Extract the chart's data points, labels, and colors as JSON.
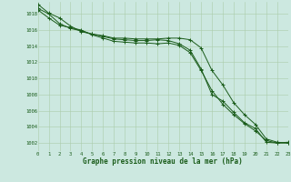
{
  "title": "Graphe pression niveau de la mer (hPa)",
  "background_color": "#cce8e0",
  "grid_color": "#aaccaa",
  "line_color": "#1a5c1a",
  "x_ticks": [
    0,
    1,
    2,
    3,
    4,
    5,
    6,
    7,
    8,
    9,
    10,
    11,
    12,
    13,
    14,
    15,
    16,
    17,
    18,
    19,
    20,
    21,
    22,
    23
  ],
  "y_ticks": [
    1002,
    1004,
    1006,
    1008,
    1010,
    1012,
    1014,
    1016,
    1018
  ],
  "ylim": [
    1001.0,
    1019.5
  ],
  "xlim": [
    0,
    23
  ],
  "series": [
    [
      1019.2,
      1018.1,
      1017.5,
      1016.5,
      1015.8,
      1015.5,
      1015.2,
      1014.9,
      1014.8,
      1014.7,
      1014.7,
      1014.8,
      1014.7,
      1014.3,
      1013.5,
      1011.2,
      1008.0,
      1007.2,
      1005.8,
      1004.5,
      1003.8,
      1002.1,
      1002.0,
      1002.1
    ],
    [
      1018.7,
      1018.0,
      1016.8,
      1016.2,
      1015.9,
      1015.5,
      1015.3,
      1015.0,
      1015.0,
      1014.9,
      1014.9,
      1014.9,
      1015.0,
      1015.0,
      1014.8,
      1013.8,
      1011.0,
      1009.2,
      1007.0,
      1005.5,
      1004.3,
      1002.5,
      1002.1,
      1002.0
    ],
    [
      1018.5,
      1017.5,
      1016.6,
      1016.3,
      1016.0,
      1015.4,
      1015.0,
      1014.6,
      1014.5,
      1014.4,
      1014.4,
      1014.3,
      1014.4,
      1014.1,
      1013.2,
      1011.0,
      1008.5,
      1006.8,
      1005.5,
      1004.4,
      1003.5,
      1002.3,
      1002.0,
      1002.0
    ]
  ]
}
